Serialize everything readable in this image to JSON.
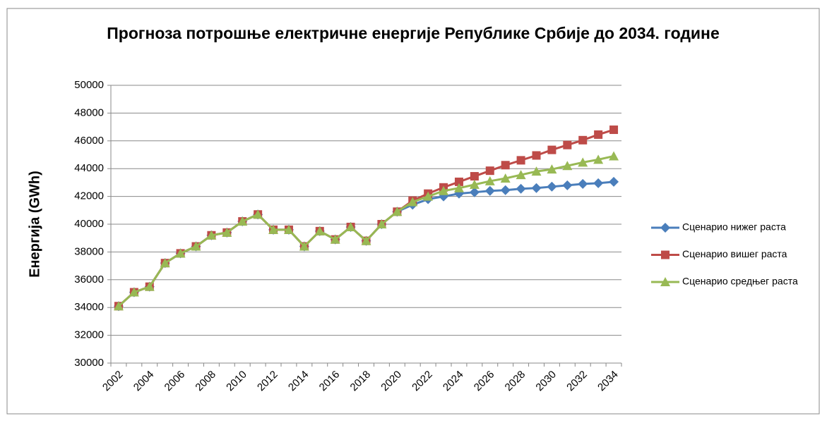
{
  "chart_data": {
    "type": "line",
    "title": "Прогноза потрошње електричне енергије Републике Србије до 2034. године",
    "y_label": "Енергија (GWh)",
    "categories": [
      "2002",
      null,
      "2004",
      null,
      "2006",
      null,
      "2008",
      null,
      "2010",
      null,
      "2012",
      null,
      "2014",
      null,
      "2016",
      null,
      "2018",
      null,
      "2020",
      null,
      "2022",
      null,
      "2024",
      null,
      "2026",
      null,
      "2028",
      null,
      "2030",
      null,
      "2032",
      null,
      "2034"
    ],
    "series": [
      {
        "name": "Сценарио нижег раста",
        "color": "#4a7ebb",
        "marker": "diamond",
        "values": [
          34100,
          35100,
          35500,
          37200,
          37900,
          38400,
          39200,
          39400,
          40200,
          40700,
          39600,
          39600,
          38400,
          39500,
          38900,
          39800,
          38800,
          40000,
          40900,
          41400,
          41800,
          42000,
          42200,
          42300,
          42400,
          42450,
          42550,
          42600,
          42700,
          42800,
          42900,
          42950,
          43050
        ]
      },
      {
        "name": "Сценарио вишег раста",
        "color": "#be4b48",
        "marker": "square",
        "values": [
          34100,
          35100,
          35500,
          37200,
          37900,
          38400,
          39200,
          39400,
          40200,
          40700,
          39600,
          39600,
          38400,
          39500,
          38900,
          39800,
          38800,
          40000,
          40900,
          41700,
          42200,
          42650,
          43050,
          43450,
          43850,
          44250,
          44600,
          44950,
          45350,
          45700,
          46050,
          46450,
          46800
        ]
      },
      {
        "name": "Сценарио средњег раста",
        "color": "#98b954",
        "marker": "triangle",
        "values": [
          34100,
          35100,
          35500,
          37200,
          37900,
          38400,
          39200,
          39400,
          40200,
          40700,
          39600,
          39600,
          38400,
          39500,
          38900,
          39800,
          38800,
          40000,
          40900,
          41600,
          42000,
          42400,
          42600,
          42850,
          43100,
          43300,
          43550,
          43800,
          43950,
          44200,
          44450,
          44650,
          44900
        ]
      }
    ],
    "ylim": [
      30000,
      50000
    ],
    "yticks": [
      30000,
      32000,
      34000,
      36000,
      38000,
      40000,
      42000,
      44000,
      46000,
      48000,
      50000
    ],
    "grid": true,
    "legend": "right"
  }
}
